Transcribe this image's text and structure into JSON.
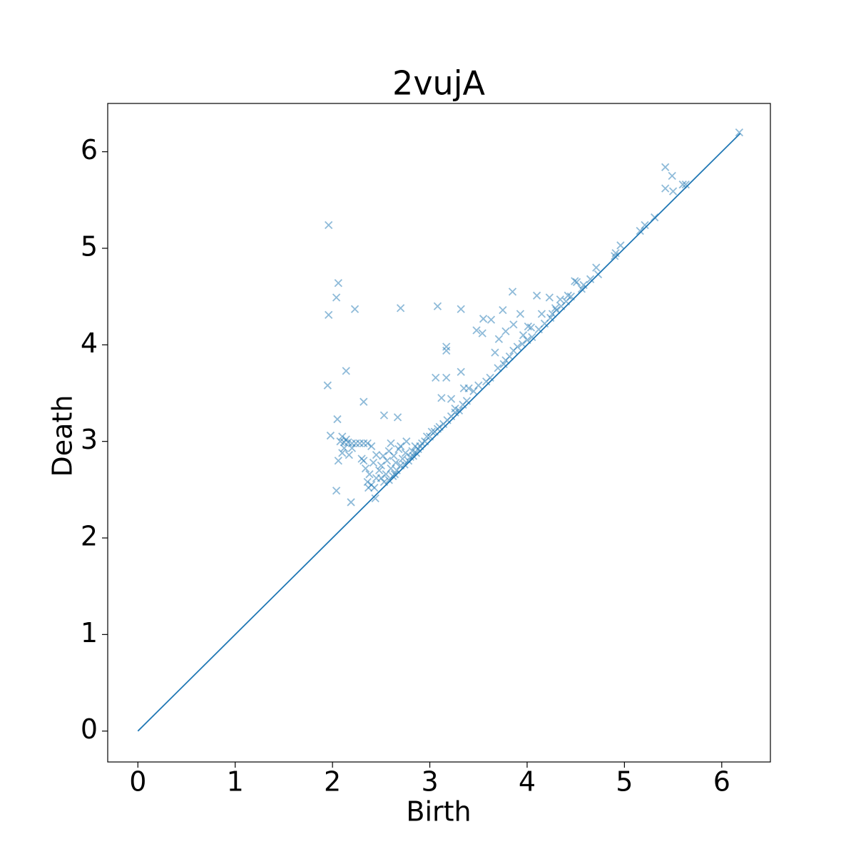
{
  "chart_data": {
    "type": "scatter",
    "title": "2vujA",
    "x_label": "Birth",
    "y_label": "Death",
    "color": "#1f77b4",
    "marker": "x",
    "marker_alpha": 0.5,
    "x": [
      1.96,
      1.96,
      2.06,
      2.04,
      2.23,
      2.7,
      3.08,
      3.32,
      1.95,
      2.14,
      2.32,
      2.05,
      1.98,
      2.04,
      2.19,
      2.53,
      2.67,
      3.17,
      3.17,
      3.06,
      3.17,
      3.32,
      3.85,
      4.1,
      4.23,
      3.86,
      3.93,
      3.75,
      3.63,
      3.48,
      3.54,
      3.55,
      3.78,
      3.67,
      4.01,
      5.42,
      5.49,
      5.5,
      5.42,
      5.6,
      5.63,
      6.18,
      4.96,
      4.91,
      5.21,
      5.31,
      4.49,
      4.71,
      4.51,
      4.73,
      4.56,
      4.42,
      4.34,
      4.29,
      4.15,
      4.04,
      3.96,
      3.71,
      2.08,
      2.12,
      2.16,
      2.2,
      2.24,
      2.28,
      2.32,
      2.36,
      2.4,
      2.1,
      2.14,
      2.2,
      2.12,
      2.1,
      2.06,
      2.17,
      2.3,
      2.32,
      2.34,
      2.38,
      2.4,
      2.43,
      2.45,
      2.42,
      2.45,
      2.48,
      2.5,
      2.52,
      2.5,
      2.53,
      2.55,
      2.56,
      2.58,
      2.6,
      2.6,
      2.62,
      2.63,
      2.65,
      2.66,
      2.68,
      2.7,
      2.7,
      2.72,
      2.74,
      2.75,
      2.76,
      2.78,
      2.8,
      2.82,
      2.83,
      2.85,
      2.86,
      2.88,
      2.9,
      2.92,
      2.95,
      2.97,
      3.0,
      3.02,
      3.05,
      3.08,
      3.1,
      3.14,
      3.18,
      3.22,
      3.26,
      3.3,
      3.34,
      3.38,
      3.35,
      3.4,
      3.45,
      3.5,
      3.58,
      3.62,
      3.7,
      3.76,
      3.78,
      3.82,
      3.86,
      3.9,
      3.95,
      4.0,
      4.05,
      4.12,
      4.18,
      4.24,
      4.26,
      4.3,
      4.35,
      4.4,
      4.45,
      4.58,
      4.65,
      4.9,
      5.16,
      2.58,
      2.64,
      2.44,
      2.37,
      3.22,
      3.12,
      3.26,
      2.36
    ],
    "values": [
      5.24,
      4.31,
      4.64,
      4.49,
      4.37,
      4.38,
      4.4,
      4.37,
      3.58,
      3.73,
      3.41,
      3.23,
      3.06,
      2.49,
      2.37,
      3.27,
      3.25,
      3.98,
      3.94,
      3.66,
      3.66,
      3.72,
      4.55,
      4.51,
      4.49,
      4.21,
      4.32,
      4.36,
      4.26,
      4.15,
      4.12,
      4.27,
      4.14,
      3.92,
      4.19,
      5.84,
      5.75,
      5.59,
      5.62,
      5.66,
      5.66,
      6.2,
      5.03,
      4.95,
      5.24,
      5.32,
      4.66,
      4.8,
      4.65,
      4.73,
      4.58,
      4.51,
      4.47,
      4.38,
      4.32,
      4.18,
      4.1,
      4.06,
      3.0,
      2.99,
      2.99,
      2.98,
      2.98,
      2.98,
      2.98,
      2.98,
      2.95,
      3.05,
      3.02,
      2.93,
      2.93,
      2.88,
      2.8,
      2.86,
      2.82,
      2.8,
      2.72,
      2.66,
      2.55,
      2.52,
      2.62,
      2.78,
      2.86,
      2.7,
      2.75,
      2.85,
      2.62,
      2.58,
      2.66,
      2.8,
      2.9,
      2.72,
      2.98,
      2.64,
      2.85,
      2.78,
      2.7,
      2.92,
      2.75,
      2.95,
      2.82,
      2.76,
      2.88,
      3.0,
      2.8,
      2.84,
      2.9,
      2.85,
      2.95,
      2.88,
      2.92,
      2.95,
      2.98,
      3.0,
      3.05,
      3.05,
      3.1,
      3.1,
      3.13,
      3.15,
      3.18,
      3.22,
      3.26,
      3.3,
      3.32,
      3.38,
      3.42,
      3.55,
      3.55,
      3.52,
      3.58,
      3.62,
      3.66,
      3.76,
      3.8,
      3.84,
      3.88,
      3.94,
      3.98,
      4.01,
      4.05,
      4.08,
      4.16,
      4.22,
      4.28,
      4.32,
      4.36,
      4.4,
      4.45,
      4.5,
      4.62,
      4.68,
      4.92,
      5.18,
      2.6,
      2.66,
      2.41,
      2.52,
      3.44,
      3.45,
      3.34,
      2.58
    ],
    "line": {
      "x": [
        0,
        6.19
      ],
      "values": [
        0,
        6.19
      ],
      "color": "#1f77b4"
    },
    "xlim": [
      -0.31,
      6.5
    ],
    "ylim": [
      -0.32,
      6.5
    ],
    "xticks": [
      0,
      1,
      2,
      3,
      4,
      5,
      6
    ],
    "yticks": [
      0,
      1,
      2,
      3,
      4,
      5,
      6
    ]
  }
}
